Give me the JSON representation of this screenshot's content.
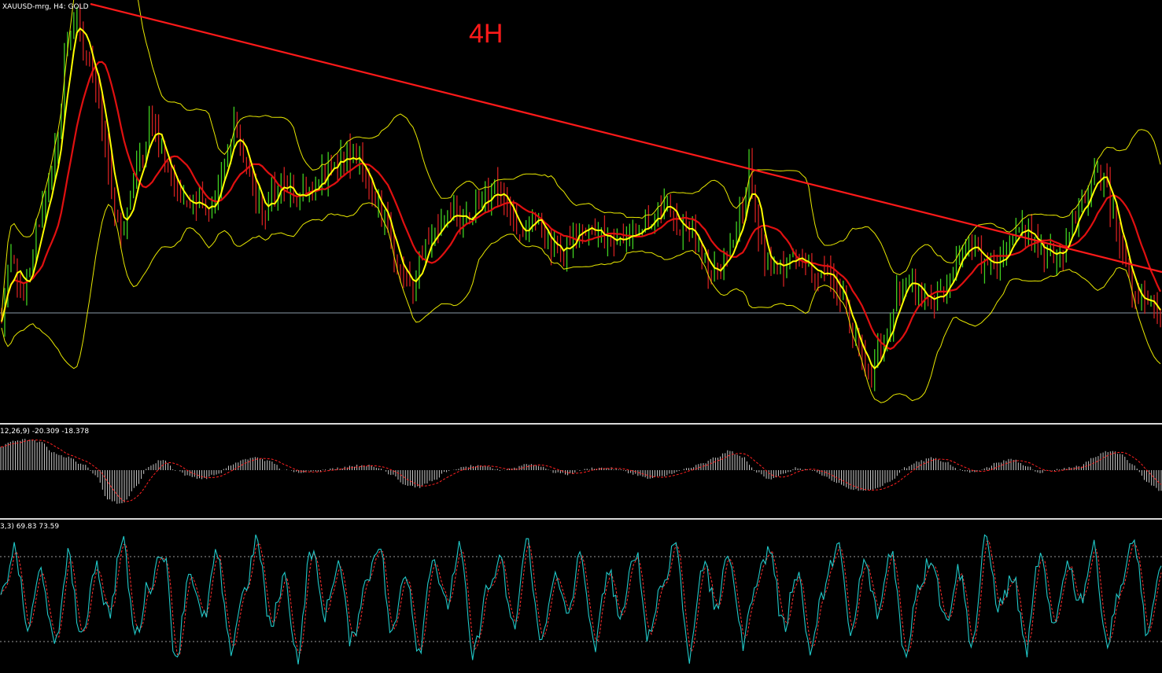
{
  "chart_title": "XAUUSD-mrg, H4:  GOLD",
  "timeframe_label": "4H",
  "macd": {
    "params_text": "12,26,9)",
    "main_value": "-20.309",
    "signal_value": "-18.378"
  },
  "stochastic": {
    "params_text": "3,3)",
    "main_value": "69.83",
    "signal_value": "73.59"
  },
  "colors": {
    "background": "#000000",
    "trendline": "#ff1a1a",
    "ma_fast": "#ffff00",
    "ma_slow": "#e01010",
    "bollinger": "#e8e800",
    "bull_candle": "#40d020",
    "bear_candle": "#d02020",
    "macd_hist": "#c8c8c8",
    "macd_signal": "#ff2020",
    "stoch_main": "#20c8c8",
    "stoch_signal": "#ff3030",
    "separator": "#d8d8d8"
  },
  "chart_data": {
    "type": "line",
    "price_series": [
      0.76,
      0.58,
      0.7,
      0.62,
      0.52,
      0.45,
      0.3,
      0.08,
      0.03,
      0.1,
      0.18,
      0.35,
      0.48,
      0.55,
      0.42,
      0.36,
      0.28,
      0.35,
      0.42,
      0.45,
      0.5,
      0.48,
      0.52,
      0.44,
      0.35,
      0.3,
      0.38,
      0.44,
      0.5,
      0.46,
      0.42,
      0.45,
      0.46,
      0.44,
      0.42,
      0.4,
      0.37,
      0.36,
      0.38,
      0.42,
      0.45,
      0.52,
      0.62,
      0.64,
      0.68,
      0.6,
      0.56,
      0.53,
      0.52,
      0.5,
      0.51,
      0.48,
      0.47,
      0.45,
      0.5,
      0.54,
      0.55,
      0.5,
      0.56,
      0.58,
      0.6,
      0.56,
      0.54,
      0.53,
      0.56,
      0.58,
      0.57,
      0.55,
      0.56,
      0.52,
      0.5,
      0.48,
      0.52,
      0.54,
      0.56,
      0.6,
      0.64,
      0.62,
      0.58,
      0.52,
      0.4,
      0.55,
      0.62,
      0.64,
      0.62,
      0.6,
      0.62,
      0.64,
      0.66,
      0.68,
      0.72,
      0.8,
      0.86,
      0.9,
      0.82,
      0.78,
      0.7,
      0.66,
      0.68,
      0.72,
      0.7,
      0.68,
      0.62,
      0.58,
      0.6,
      0.62,
      0.64,
      0.6,
      0.55,
      0.52,
      0.56,
      0.58,
      0.6,
      0.62,
      0.56,
      0.5,
      0.45,
      0.4,
      0.44,
      0.5,
      0.62,
      0.7,
      0.72,
      0.74,
      0.78
    ],
    "macd_series": [
      0.55,
      0.7,
      0.72,
      0.65,
      0.4,
      0.3,
      0.15,
      -0.1,
      -0.7,
      -0.8,
      -0.4,
      0.1,
      0.25,
      0.0,
      -0.15,
      -0.2,
      -0.1,
      0.1,
      0.25,
      0.3,
      0.2,
      0.0,
      -0.05,
      -0.02,
      0.0,
      0.05,
      0.1,
      0.12,
      0.05,
      -0.1,
      -0.35,
      -0.4,
      -0.25,
      -0.05,
      0.05,
      0.1,
      0.08,
      0.0,
      0.05,
      0.15,
      0.1,
      -0.05,
      -0.1,
      0.0,
      0.05,
      0.05,
      0.0,
      -0.1,
      -0.2,
      -0.15,
      -0.05,
      0.05,
      0.15,
      0.3,
      0.45,
      0.3,
      -0.05,
      -0.2,
      -0.1,
      0.05,
      0.0,
      -0.15,
      -0.3,
      -0.45,
      -0.5,
      -0.4,
      -0.25,
      0.05,
      0.2,
      0.3,
      0.2,
      0.0,
      -0.05,
      0.05,
      0.2,
      0.25,
      0.1,
      -0.05,
      0.0,
      0.05,
      0.1,
      0.3,
      0.45,
      0.4,
      0.1,
      -0.3,
      -0.5
    ],
    "stoch_series": [
      50,
      85,
      30,
      70,
      15,
      80,
      20,
      75,
      40,
      90,
      25,
      60,
      85,
      10,
      70,
      35,
      80,
      15,
      55,
      90,
      30,
      65,
      10,
      85,
      40,
      75,
      20,
      60,
      90,
      25,
      70,
      15,
      80,
      45,
      85,
      10,
      55,
      75,
      30,
      90,
      20,
      65,
      40,
      80,
      15,
      70,
      35,
      85,
      25,
      60,
      90,
      10,
      75,
      45,
      80,
      20,
      65,
      85,
      30,
      70,
      15,
      55,
      90,
      25,
      75,
      40,
      85,
      10,
      60,
      80,
      35,
      70,
      20,
      90,
      45,
      65,
      15,
      80,
      30,
      75,
      50,
      85,
      20,
      60,
      90,
      25,
      70
    ],
    "stoch_levels": [
      80,
      20
    ]
  }
}
